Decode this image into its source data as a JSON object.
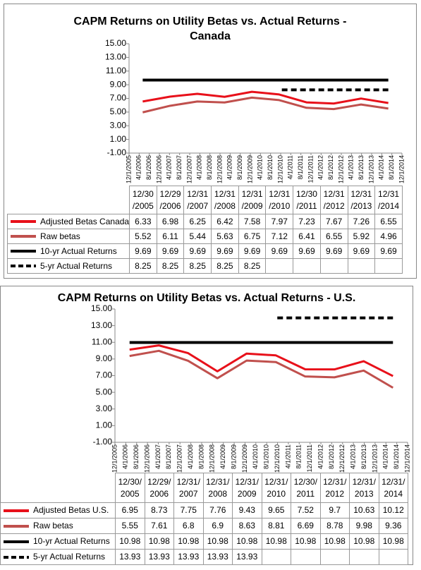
{
  "chart_data": [
    {
      "type": "line",
      "title": "CAPM Returns on Utility Betas vs. Actual Returns - Canada",
      "ylim": [
        -1,
        15
      ],
      "yticks": [
        {
          "value": 15,
          "label": "15.00"
        },
        {
          "value": 13,
          "label": "13.00"
        },
        {
          "value": 11,
          "label": "11.00"
        },
        {
          "value": 9,
          "label": "9.00"
        },
        {
          "value": 7,
          "label": "7.00"
        },
        {
          "value": 5,
          "label": "5.00"
        },
        {
          "value": 3,
          "label": "3.00"
        },
        {
          "value": 1,
          "label": "1.00"
        },
        {
          "value": -1,
          "label": "-1.00"
        }
      ],
      "xtick_labels": [
        "12/1/2005",
        "4/1/2006",
        "8/1/2006",
        "12/1/2006",
        "4/1/2007",
        "8/1/2007",
        "12/1/2007",
        "4/1/2008",
        "8/1/2008",
        "12/1/2008",
        "4/1/2009",
        "8/1/2009",
        "12/1/2009",
        "4/1/2010",
        "8/1/2010",
        "12/1/2010",
        "4/1/2011",
        "8/1/2011",
        "12/1/2011",
        "4/1/2012",
        "8/1/2012",
        "12/1/2012",
        "4/1/2013",
        "8/1/2013",
        "12/1/2013",
        "4/1/2014",
        "8/1/2014",
        "12/1/2014"
      ],
      "x_reversed": true,
      "categories": [
        "12/30\n/2005",
        "12/29\n/2006",
        "12/31\n/2007",
        "12/31\n/2008",
        "12/31\n/2009",
        "12/31\n/2010",
        "12/30\n/2011",
        "12/31\n/2012",
        "12/31\n/2013",
        "12/31\n/2014"
      ],
      "series": [
        {
          "name": "Adjusted Betas Canada",
          "color": "#e8101a",
          "values": [
            6.33,
            6.98,
            6.25,
            6.42,
            7.58,
            7.97,
            7.23,
            7.67,
            7.26,
            6.55
          ]
        },
        {
          "name": "Raw betas",
          "color": "#c0504d",
          "values": [
            5.52,
            6.11,
            5.44,
            5.63,
            6.75,
            7.12,
            6.41,
            6.55,
            5.92,
            4.96
          ]
        },
        {
          "name": "10-yr Actual Returns",
          "color": "#000000",
          "values": [
            9.69,
            9.69,
            9.69,
            9.69,
            9.69,
            9.69,
            9.69,
            9.69,
            9.69,
            9.69
          ]
        },
        {
          "name": "5-yr Actual Returns",
          "color": "#000000",
          "dashed": true,
          "values": [
            8.25,
            8.25,
            8.25,
            8.25,
            8.25,
            null,
            null,
            null,
            null,
            null
          ]
        }
      ]
    },
    {
      "type": "line",
      "title": "CAPM Returns on Utility Betas vs. Actual Returns - U.S.",
      "ylim": [
        -1,
        15
      ],
      "yticks": [
        {
          "value": 15,
          "label": "15.00"
        },
        {
          "value": 13,
          "label": "13.00"
        },
        {
          "value": 11,
          "label": "11.00"
        },
        {
          "value": 9,
          "label": "9.00"
        },
        {
          "value": 7,
          "label": "7.00"
        },
        {
          "value": 5,
          "label": "5.00"
        },
        {
          "value": 3,
          "label": "3.00"
        },
        {
          "value": 1,
          "label": "1.00"
        },
        {
          "value": -1,
          "label": "-1.00"
        }
      ],
      "xtick_labels": [
        "12/1/2005",
        "4/1/2006",
        "8/1/2006",
        "12/1/2006",
        "4/1/2007",
        "8/1/2007",
        "12/1/2007",
        "4/1/2008",
        "8/1/2008",
        "12/1/2008",
        "4/1/2009",
        "8/1/2009",
        "12/1/2009",
        "4/1/2010",
        "8/1/2010",
        "12/1/2010",
        "4/1/2011",
        "8/1/2011",
        "12/1/2011",
        "4/1/2012",
        "8/1/2012",
        "12/1/2012",
        "4/1/2013",
        "8/1/2013",
        "12/1/2013",
        "4/1/2014",
        "8/1/2014",
        "12/1/2014"
      ],
      "x_reversed": true,
      "categories": [
        "12/30/\n2005",
        "12/29/\n2006",
        "12/31/\n2007",
        "12/31/\n2008",
        "12/31/\n2009",
        "12/31/\n2010",
        "12/30/\n2011",
        "12/31/\n2012",
        "12/31/\n2013",
        "12/31/\n2014"
      ],
      "series": [
        {
          "name": "Adjusted Betas U.S.",
          "color": "#e8101a",
          "values": [
            6.95,
            8.73,
            7.75,
            7.76,
            9.43,
            9.65,
            7.52,
            9.7,
            10.63,
            10.12
          ]
        },
        {
          "name": "Raw betas",
          "color": "#c0504d",
          "values": [
            5.55,
            7.61,
            6.8,
            6.9,
            8.63,
            8.81,
            6.69,
            8.78,
            9.98,
            9.36
          ]
        },
        {
          "name": "10-yr Actual Returns",
          "color": "#000000",
          "values": [
            10.98,
            10.98,
            10.98,
            10.98,
            10.98,
            10.98,
            10.98,
            10.98,
            10.98,
            10.98
          ]
        },
        {
          "name": "5-yr Actual Returns",
          "color": "#000000",
          "dashed": true,
          "values": [
            13.93,
            13.93,
            13.93,
            13.93,
            13.93,
            null,
            null,
            null,
            null,
            null
          ]
        }
      ]
    }
  ]
}
